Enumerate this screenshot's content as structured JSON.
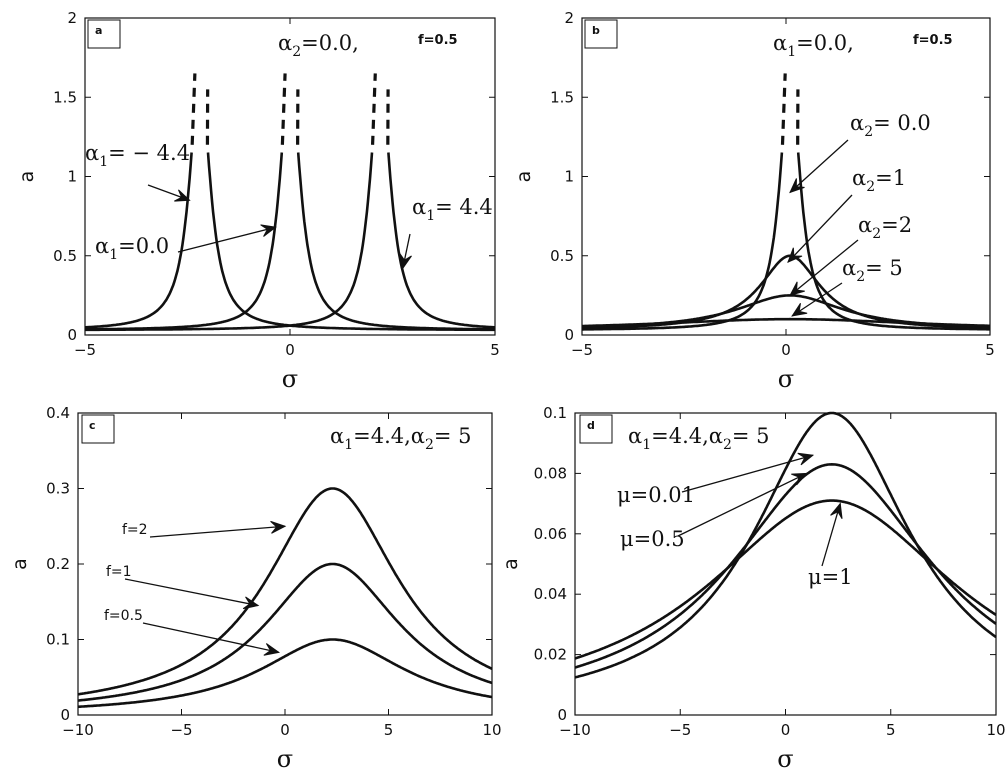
{
  "chart_data": [
    {
      "panel": "a",
      "type": "line",
      "xlabel": "σ",
      "ylabel": "a",
      "xlim": [
        -5,
        5
      ],
      "ylim": [
        0,
        2
      ],
      "xticks": [
        -5,
        0,
        5
      ],
      "yticks": [
        0,
        0.5,
        1,
        1.5,
        2
      ],
      "ytick_labels": [
        "0",
        "0.5",
        "1",
        "1.5",
        "2"
      ],
      "title_annotation": {
        "text": "α",
        "sub": "2",
        "rest": "=0.0,",
        "extra": "f=0.5"
      },
      "series": [
        {
          "name": "α1 = −4.4",
          "peak_x": -2.2,
          "peak_y": 1.65,
          "gamma": 0.3,
          "floor": 0.03,
          "x_start": -5,
          "x_end": 5
        },
        {
          "name": "α1 = 0.0",
          "peak_x": 0,
          "peak_y": 1.65,
          "gamma": 0.3,
          "floor": 0.03,
          "x_start": -5,
          "x_end": 5
        },
        {
          "name": "α1 = 4.4",
          "peak_x": 2.2,
          "peak_y": 1.65,
          "gamma": 0.3,
          "floor": 0.03,
          "x_start": -5,
          "x_end": 5
        }
      ],
      "unstable_from_y": 1.2,
      "annotations": [
        {
          "greek": "α",
          "sub": "1",
          "rest": "= − 4.4",
          "tip": [
            -2.45,
            0.85
          ]
        },
        {
          "greek": "α",
          "sub": "1",
          "rest": "=0.0",
          "tip": [
            -0.35,
            0.68
          ]
        },
        {
          "greek": "α",
          "sub": "1",
          "rest": "= 4.4",
          "tip": [
            2.75,
            0.42
          ]
        }
      ]
    },
    {
      "panel": "b",
      "type": "line",
      "xlabel": "σ",
      "ylabel": "a",
      "xlim": [
        -5,
        5
      ],
      "ylim": [
        0,
        2
      ],
      "xticks": [
        -5,
        0,
        5
      ],
      "yticks": [
        0,
        0.5,
        1,
        1.5,
        2
      ],
      "ytick_labels": [
        "0",
        "0.5",
        "1",
        "1.5",
        "2"
      ],
      "title_annotation": {
        "text": "α",
        "sub": "1",
        "rest": "=0.0,",
        "extra": "f=0.5"
      },
      "series": [
        {
          "name": "α2 = 0.0",
          "peak_x": 0.1,
          "peak_y": 1.65,
          "gamma": 0.3,
          "floor": 0.03,
          "x_start": -5,
          "x_end": 5
        },
        {
          "name": "α2 = 1",
          "peak_x": 0.1,
          "peak_y": 0.5,
          "gamma": 0.9,
          "floor": 0.03,
          "x_start": -5,
          "x_end": 5
        },
        {
          "name": "α2 = 2",
          "peak_x": 0.1,
          "peak_y": 0.25,
          "gamma": 1.6,
          "floor": 0.03,
          "x_start": -5,
          "x_end": 5
        },
        {
          "name": "α2 = 5",
          "peak_x": 0.1,
          "peak_y": 0.1,
          "gamma": 4.0,
          "floor": 0.03,
          "x_start": -5,
          "x_end": 5
        }
      ],
      "unstable_from_y": 1.2,
      "annotations": [
        {
          "greek": "α",
          "sub": "2",
          "rest": "= 0.0",
          "tip": [
            0.1,
            0.9
          ]
        },
        {
          "greek": "α",
          "sub": "2",
          "rest": "=1",
          "tip": [
            0.05,
            0.46
          ]
        },
        {
          "greek": "α",
          "sub": "2",
          "rest": "=2",
          "tip": [
            0.1,
            0.25
          ]
        },
        {
          "greek": "α",
          "sub": "2",
          "rest": "= 5",
          "tip": [
            0.15,
            0.12
          ]
        }
      ]
    },
    {
      "panel": "c",
      "type": "line",
      "xlabel": "σ",
      "ylabel": "a",
      "xlim": [
        -10,
        10
      ],
      "ylim": [
        0,
        0.4
      ],
      "xticks": [
        -10,
        -5,
        0,
        5,
        10
      ],
      "yticks": [
        0,
        0.1,
        0.2,
        0.3,
        0.4
      ],
      "ytick_labels": [
        "0",
        "0.1",
        "0.2",
        "0.3",
        "0.4"
      ],
      "title_annotation": {
        "text": "α",
        "sub": "1",
        "rest": "=4.4,α",
        "sub2": "2",
        "rest2": "= 5"
      },
      "series": [
        {
          "name": "f=2",
          "peak_x": 2.3,
          "peak_y": 0.3,
          "gamma": 3.9,
          "floor": 0,
          "x_start": -10,
          "x_end": 10
        },
        {
          "name": "f=1",
          "peak_x": 2.3,
          "peak_y": 0.2,
          "gamma": 4.0,
          "floor": 0,
          "x_start": -10,
          "x_end": 10
        },
        {
          "name": "f=0.5",
          "peak_x": 2.3,
          "peak_y": 0.1,
          "gamma": 4.3,
          "floor": 0,
          "x_start": -10,
          "x_end": 10
        }
      ],
      "annotations": [
        {
          "text": "f=2",
          "tip": [
            0,
            0.25
          ]
        },
        {
          "text": "f=1",
          "tip": [
            -1.3,
            0.145
          ]
        },
        {
          "text": "f=0.5",
          "tip": [
            -0.3,
            0.083
          ]
        }
      ]
    },
    {
      "panel": "d",
      "type": "line",
      "xlabel": "σ",
      "ylabel": "a",
      "xlim": [
        -10,
        10
      ],
      "ylim": [
        0,
        0.1
      ],
      "xticks": [
        -10,
        -5,
        0,
        5,
        10
      ],
      "yticks": [
        0,
        0.02,
        0.04,
        0.06,
        0.08,
        0.1
      ],
      "ytick_labels": [
        "0",
        "0.02",
        "0.04",
        "0.06",
        "0.08",
        "0.1"
      ],
      "title_annotation": {
        "text": "α",
        "sub": "1",
        "rest": "=4.4,α",
        "sub2": "2",
        "rest2": "= 5"
      },
      "series": [
        {
          "name": "μ=0.01",
          "peak_x": 2.2,
          "peak_y": 0.1,
          "gamma": 4.6,
          "floor": 0,
          "x_start": -10,
          "x_end": 10
        },
        {
          "name": "μ=0.5",
          "peak_x": 2.2,
          "peak_y": 0.083,
          "gamma": 5.9,
          "floor": 0,
          "x_start": -10,
          "x_end": 10
        },
        {
          "name": "μ=1",
          "peak_x": 2.2,
          "peak_y": 0.071,
          "gamma": 7.3,
          "floor": 0,
          "x_start": -10,
          "x_end": 10
        }
      ],
      "annotations": [
        {
          "text": "μ=0.01",
          "tip": [
            1.3,
            0.086
          ]
        },
        {
          "text": "μ=0.5",
          "tip": [
            1.0,
            0.08
          ]
        },
        {
          "text": "μ=1",
          "tip": [
            2.6,
            0.07
          ]
        }
      ]
    }
  ]
}
